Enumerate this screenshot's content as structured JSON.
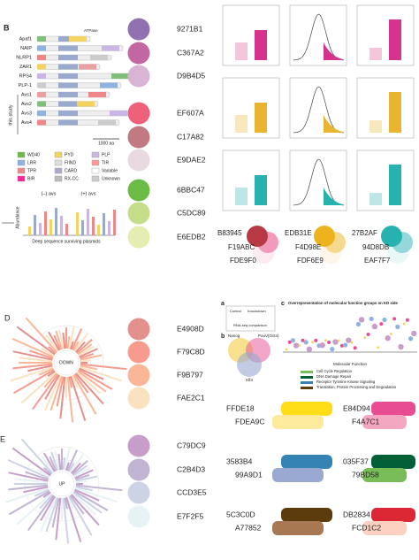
{
  "figure_b": {
    "label": "B",
    "domain_header": "ATPase",
    "proteins": [
      "Apaf1",
      "NAIP",
      "NLRP1",
      "ZAR1",
      "RPS4",
      "PLP-1",
      "Avs1",
      "Avs2",
      "Avs3",
      "Avs4"
    ],
    "side_label": "this study",
    "scale": "1000 aa",
    "legend": [
      "WD40",
      "LRR",
      "TPR",
      "BIR",
      "PYD",
      "FIIND",
      "CARD",
      "RX-CC",
      "PLP",
      "TIR",
      "Variable",
      "Unknown"
    ],
    "minus": "(–) avs",
    "plus": "(+) avs",
    "y_label": "Abundance",
    "x_label": "Deep sequence surviving plasmids"
  },
  "swatch_columns": [
    [
      "9271B1",
      "C367A2",
      "D9B4D5",
      "EF607A",
      "C17A82",
      "E9DAE2",
      "6BBC47",
      "C5DC89",
      "E6EDB2"
    ],
    [
      "E4908D",
      "F79C8D",
      "F9B797",
      "FAE2C1",
      "C79DC9",
      "C2B4D3",
      "CCD3E5",
      "E7F2F5"
    ]
  ],
  "circle_trios": [
    [
      "B83945",
      "F19ABC",
      "FDE9F0"
    ],
    [
      "EDB31E",
      "F4D98E",
      "FDF6E9"
    ],
    [
      "27B2AF",
      "94D8DB",
      "EAF7F7"
    ]
  ],
  "figure_d": {
    "label": "D",
    "center": "DOWN"
  },
  "figure_e": {
    "label": "E",
    "center": "UP"
  },
  "figure_abc": {
    "label_a": "a",
    "label_b": "b",
    "label_c": "c",
    "control": "Control",
    "knockdown": "Knockdown",
    "rnaseq": "RNA-seq comparison",
    "venn": [
      "Nanog",
      "PouV(Oct4)",
      "Klf4"
    ],
    "title_c": "Overrepresentation of molecular function groups on KD side",
    "x_label_c": "Molecular Function",
    "groups": [
      "Cell Cycle Regulation",
      "DNA Damage Repair",
      "Receptor Tyrosine Kinase Signaling",
      "Translation, Protein Processing and Degradation"
    ]
  },
  "bar_pairs": [
    [
      "FFDE18",
      "FDEA9C"
    ],
    [
      "E84D94",
      "F4A7C1"
    ],
    [
      "3583B4",
      "99A9D1"
    ],
    [
      "035F37",
      "79BD58"
    ],
    [
      "5C3C0D",
      "A77852"
    ],
    [
      "DB2834",
      "FCD1C2"
    ]
  ]
}
